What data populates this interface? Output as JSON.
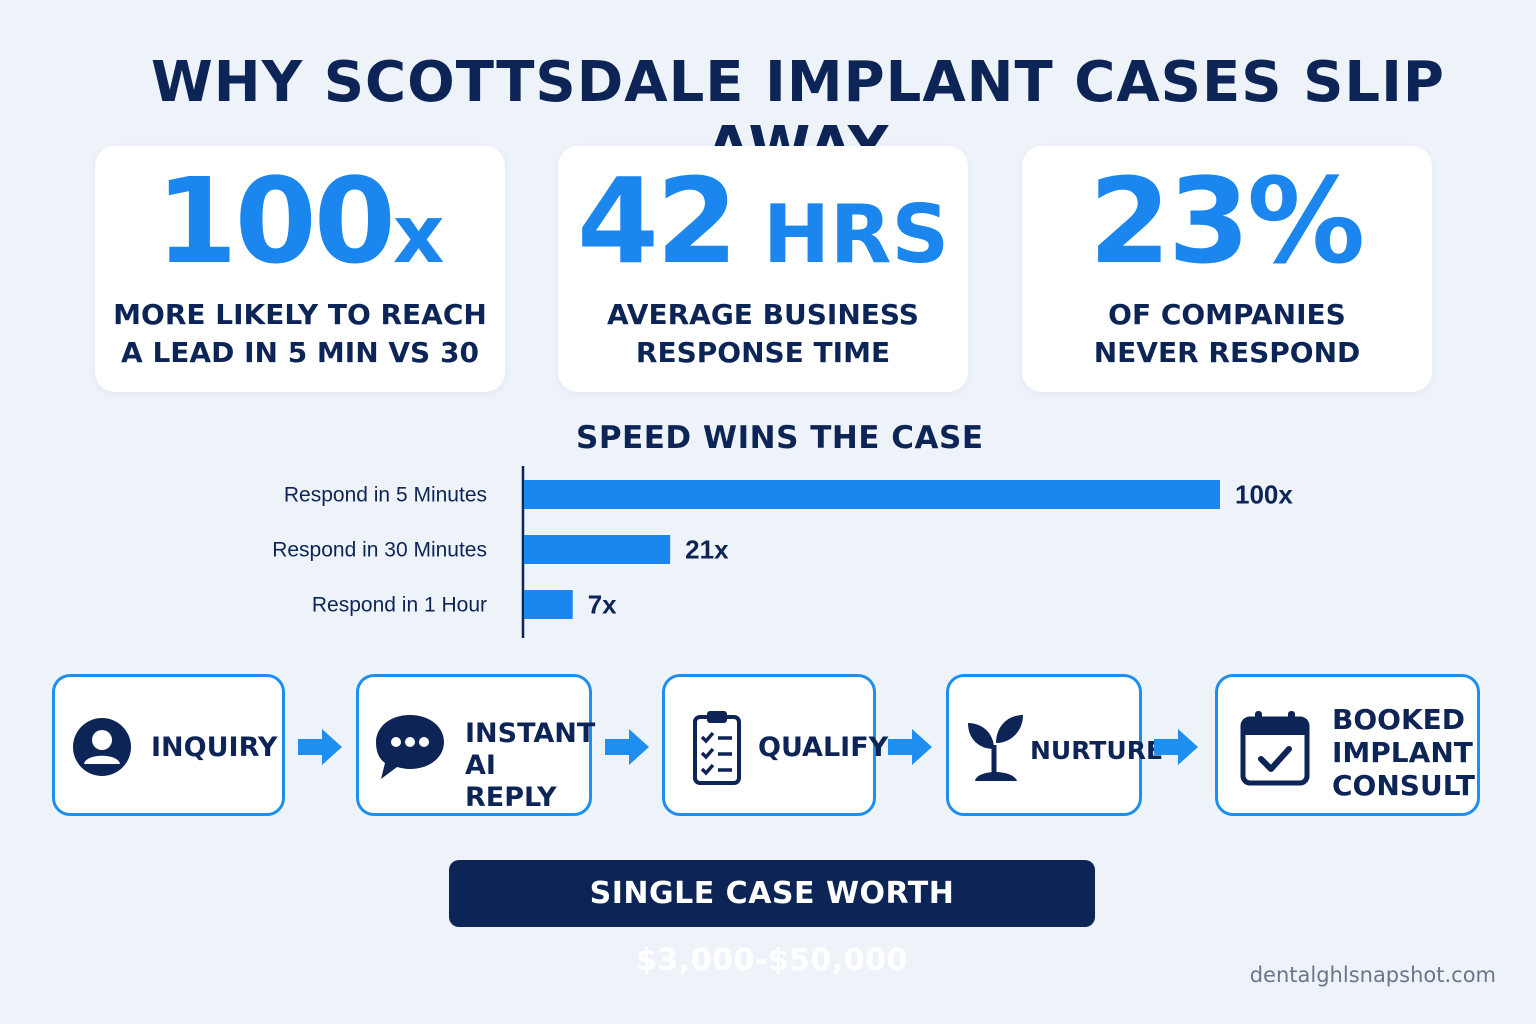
{
  "title": "WHY SCOTTSDALE IMPLANT CASES SLIP AWAY",
  "stats": [
    {
      "value": "100",
      "unit": "x",
      "label": "MORE LIKELY TO REACH\nA LEAD IN 5 MIN VS 30"
    },
    {
      "value": "42",
      "unit": " HRS",
      "label": "AVERAGE BUSINESS\nRESPONSE TIME"
    },
    {
      "value": "23",
      "unit": "%",
      "label": "OF COMPANIES\nNEVER RESPOND"
    }
  ],
  "chart_data": {
    "type": "bar",
    "orientation": "horizontal",
    "title": "SPEED WINS THE CASE",
    "categories": [
      "Respond in 5 Minutes",
      "Respond in 30 Minutes",
      "Respond in 1 Hour"
    ],
    "values": [
      100,
      21,
      7
    ],
    "value_labels": [
      "100x",
      "21x",
      "7x"
    ],
    "xlim": [
      0,
      100
    ],
    "grid": false,
    "bar_color": "#1a86ee"
  },
  "flow": [
    {
      "label": "INQUIRY",
      "icon": "user-icon"
    },
    {
      "label": "INSTANT\nAI REPLY",
      "icon": "chat-bubble-icon"
    },
    {
      "label": "QUALIFY",
      "icon": "clipboard-checklist-icon"
    },
    {
      "label": "NURTURE",
      "icon": "sprout-icon"
    },
    {
      "label": "BOOKED\nIMPLANT\nCONSULT",
      "icon": "calendar-check-icon"
    }
  ],
  "banner": "SINGLE CASE WORTH $3,000-$50,000",
  "credit": "dentalghlsnapshot.com",
  "colors": {
    "navy": "#0d2556",
    "blue": "#1a86ee",
    "background": "#eef3fa"
  }
}
